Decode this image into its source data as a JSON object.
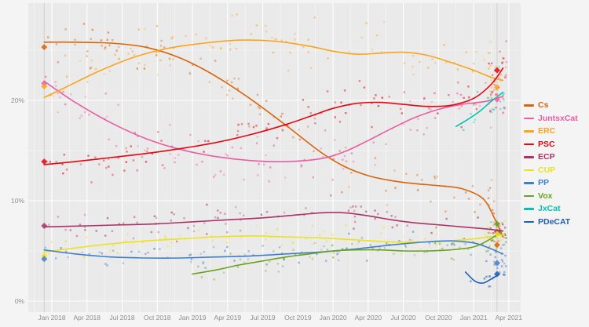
{
  "chart_data": {
    "type": "scatter",
    "title": "",
    "legend_position": "right",
    "grid": true,
    "x_axis": {
      "unit": "months since Jan 2018",
      "tick_months": [
        0,
        3,
        6,
        9,
        12,
        15,
        18,
        21,
        24,
        27,
        30,
        33,
        36,
        39
      ],
      "tick_labels": [
        "Jan 2018",
        "Apr 2018",
        "Jul 2018",
        "Oct 2018",
        "Jan 2019",
        "Apr 2019",
        "Jul 2019",
        "Oct 2019",
        "Jan 2020",
        "Apr 2020",
        "Jul 2020",
        "Oct 2020",
        "Jan 2021",
        "Apr 2021"
      ]
    },
    "y_axis": {
      "tick_values": [
        0,
        10,
        20
      ],
      "tick_labels": [
        "0%",
        "10%",
        "20%"
      ],
      "grid_minor": [
        5,
        15,
        25
      ],
      "range": [
        0,
        29.7
      ]
    },
    "series": [
      {
        "name": "Cs",
        "color": "#d9640a",
        "trend": [
          [
            -0.65,
            25.8
          ],
          [
            2,
            25.8
          ],
          [
            5,
            25.7
          ],
          [
            8,
            25.3
          ],
          [
            11,
            24.2
          ],
          [
            14,
            22.4
          ],
          [
            17,
            20.1
          ],
          [
            20,
            17.5
          ],
          [
            23,
            14.8
          ],
          [
            25,
            13.4
          ],
          [
            27,
            12.5
          ],
          [
            29,
            12.0
          ],
          [
            31,
            11.7
          ],
          [
            33,
            11.5
          ],
          [
            35,
            11.2
          ],
          [
            36.8,
            10.2
          ],
          [
            37.8,
            8.2
          ],
          [
            38.5,
            6.4
          ]
        ],
        "scatter": {
          "count": 95,
          "end_count": 16,
          "amplitude": 1.7,
          "x_start": -0.6,
          "x_end": 38.8
        }
      },
      {
        "name": "JuntsxCat",
        "color": "#e75fa2",
        "trend": [
          [
            -0.65,
            21.9
          ],
          [
            2,
            19.8
          ],
          [
            5,
            17.8
          ],
          [
            8,
            16.2
          ],
          [
            11,
            15.1
          ],
          [
            14,
            14.4
          ],
          [
            17,
            14.0
          ],
          [
            20,
            13.9
          ],
          [
            23,
            14.2
          ],
          [
            25,
            14.9
          ],
          [
            27,
            16.0
          ],
          [
            29,
            17.2
          ],
          [
            31,
            18.3
          ],
          [
            33,
            19.1
          ],
          [
            35,
            19.6
          ],
          [
            37,
            19.9
          ],
          [
            38.5,
            20.4
          ]
        ],
        "scatter": {
          "count": 95,
          "end_count": 16,
          "amplitude": 1.9,
          "x_start": -0.6,
          "x_end": 38.8
        }
      },
      {
        "name": "ERC",
        "color": "#f8a51b",
        "trend": [
          [
            -0.65,
            20.3
          ],
          [
            1,
            21.2
          ],
          [
            4,
            22.9
          ],
          [
            7,
            24.3
          ],
          [
            10,
            25.2
          ],
          [
            13,
            25.7
          ],
          [
            16,
            26.0
          ],
          [
            19,
            25.9
          ],
          [
            22,
            25.4
          ],
          [
            24,
            24.9
          ],
          [
            26,
            24.6
          ],
          [
            28,
            24.7
          ],
          [
            30,
            24.8
          ],
          [
            32,
            24.5
          ],
          [
            34,
            23.8
          ],
          [
            36,
            23.0
          ],
          [
            37.5,
            22.3
          ],
          [
            38.5,
            22.0
          ]
        ],
        "scatter": {
          "count": 95,
          "end_count": 16,
          "amplitude": 1.8,
          "x_start": -0.6,
          "x_end": 38.8
        }
      },
      {
        "name": "PSC",
        "color": "#e30613",
        "trend": [
          [
            -0.65,
            13.6
          ],
          [
            2,
            13.9
          ],
          [
            5,
            14.3
          ],
          [
            8,
            14.7
          ],
          [
            11,
            15.2
          ],
          [
            14,
            15.8
          ],
          [
            17,
            16.6
          ],
          [
            20,
            17.6
          ],
          [
            22,
            18.4
          ],
          [
            24,
            19.2
          ],
          [
            26,
            19.7
          ],
          [
            28,
            19.8
          ],
          [
            30,
            19.6
          ],
          [
            32,
            19.4
          ],
          [
            34,
            19.5
          ],
          [
            36,
            20.2
          ],
          [
            37.5,
            21.6
          ],
          [
            38.5,
            23.2
          ]
        ],
        "scatter": {
          "count": 95,
          "end_count": 16,
          "amplitude": 1.5,
          "x_start": -0.6,
          "x_end": 38.8
        }
      },
      {
        "name": "ECP",
        "color": "#aa3266",
        "trend": [
          [
            -0.65,
            7.4
          ],
          [
            3,
            7.5
          ],
          [
            6,
            7.6
          ],
          [
            9,
            7.7
          ],
          [
            12,
            7.9
          ],
          [
            15,
            8.1
          ],
          [
            18,
            8.3
          ],
          [
            21,
            8.6
          ],
          [
            23,
            8.8
          ],
          [
            25,
            8.8
          ],
          [
            27,
            8.5
          ],
          [
            29,
            8.1
          ],
          [
            31,
            7.8
          ],
          [
            33,
            7.6
          ],
          [
            35,
            7.4
          ],
          [
            37,
            7.2
          ],
          [
            38.5,
            7.0
          ]
        ],
        "scatter": {
          "count": 80,
          "end_count": 12,
          "amplitude": 1.2,
          "x_start": -0.6,
          "x_end": 38.8
        }
      },
      {
        "name": "CUP",
        "color": "#ece21f",
        "trend": [
          [
            -0.65,
            4.9
          ],
          [
            2,
            5.3
          ],
          [
            5,
            5.7
          ],
          [
            8,
            6.0
          ],
          [
            11,
            6.2
          ],
          [
            14,
            6.4
          ],
          [
            17,
            6.5
          ],
          [
            20,
            6.4
          ],
          [
            23,
            6.3
          ],
          [
            26,
            6.1
          ],
          [
            29,
            5.9
          ],
          [
            32,
            5.9
          ],
          [
            34,
            6.0
          ],
          [
            36,
            6.2
          ],
          [
            38.5,
            6.6
          ]
        ],
        "scatter": {
          "count": 75,
          "end_count": 12,
          "amplitude": 1.0,
          "x_start": -0.6,
          "x_end": 38.8
        }
      },
      {
        "name": "PP",
        "color": "#3f7fca",
        "trend": [
          [
            -0.65,
            5.1
          ],
          [
            2,
            4.7
          ],
          [
            5,
            4.4
          ],
          [
            8,
            4.3
          ],
          [
            11,
            4.3
          ],
          [
            14,
            4.4
          ],
          [
            17,
            4.5
          ],
          [
            20,
            4.7
          ],
          [
            23,
            4.9
          ],
          [
            26,
            5.2
          ],
          [
            29,
            5.6
          ],
          [
            32,
            5.9
          ],
          [
            34,
            6.0
          ],
          [
            36,
            5.8
          ],
          [
            37.3,
            5.3
          ],
          [
            38.5,
            4.7
          ]
        ],
        "scatter": {
          "count": 80,
          "end_count": 12,
          "amplitude": 1.0,
          "x_start": -0.6,
          "x_end": 38.8
        }
      },
      {
        "name": "Vox",
        "color": "#6aa21e",
        "trend": [
          [
            12,
            2.7
          ],
          [
            14,
            3.1
          ],
          [
            16,
            3.6
          ],
          [
            18,
            4.0
          ],
          [
            20,
            4.4
          ],
          [
            22,
            4.7
          ],
          [
            24,
            5.0
          ],
          [
            26,
            5.1
          ],
          [
            28,
            5.1
          ],
          [
            30,
            5.0
          ],
          [
            32,
            5.0
          ],
          [
            34,
            5.1
          ],
          [
            36,
            5.4
          ],
          [
            37.3,
            6.1
          ],
          [
            38.5,
            7.0
          ]
        ],
        "scatter": {
          "count": 55,
          "end_count": 12,
          "amplitude": 0.85,
          "x_start": 12,
          "x_end": 38.8
        }
      },
      {
        "name": "JxCat",
        "color": "#00c2b3",
        "trend": [
          [
            34.5,
            17.4
          ],
          [
            35.5,
            18.1
          ],
          [
            36.5,
            18.9
          ],
          [
            37.5,
            19.9
          ],
          [
            38.5,
            20.8
          ]
        ],
        "scatter": {
          "count": 10,
          "end_count": 8,
          "amplitude": 1.3,
          "x_start": 34.5,
          "x_end": 38.8
        }
      },
      {
        "name": "PDeCAT",
        "color": "#1d5fb4",
        "trend": [
          [
            35.3,
            2.9
          ],
          [
            36.1,
            2.0
          ],
          [
            36.8,
            1.8
          ],
          [
            37.5,
            2.2
          ],
          [
            38.2,
            2.7
          ]
        ],
        "scatter": {
          "count": 8,
          "end_count": 8,
          "amplitude": 0.7,
          "x_start": 35.2,
          "x_end": 38.8
        }
      }
    ],
    "election_markers": [
      {
        "month": -0.65,
        "results": [
          [
            "Cs",
            25.3
          ],
          [
            "JuntsxCat",
            21.7
          ],
          [
            "ERC",
            21.4
          ],
          [
            "PSC",
            13.9
          ],
          [
            "ECP",
            7.5
          ],
          [
            "CUP",
            4.5
          ],
          [
            "PP",
            4.2
          ]
        ]
      },
      {
        "month": 38.0,
        "results": [
          [
            "PSC",
            23.0
          ],
          [
            "ERC",
            21.3
          ],
          [
            "JuntsxCat",
            20.1
          ],
          [
            "Vox",
            7.7
          ],
          [
            "ECP",
            6.9
          ],
          [
            "CUP",
            6.7
          ],
          [
            "Cs",
            5.6
          ],
          [
            "PP",
            3.8
          ],
          [
            "PDeCAT",
            2.7
          ]
        ]
      }
    ]
  }
}
